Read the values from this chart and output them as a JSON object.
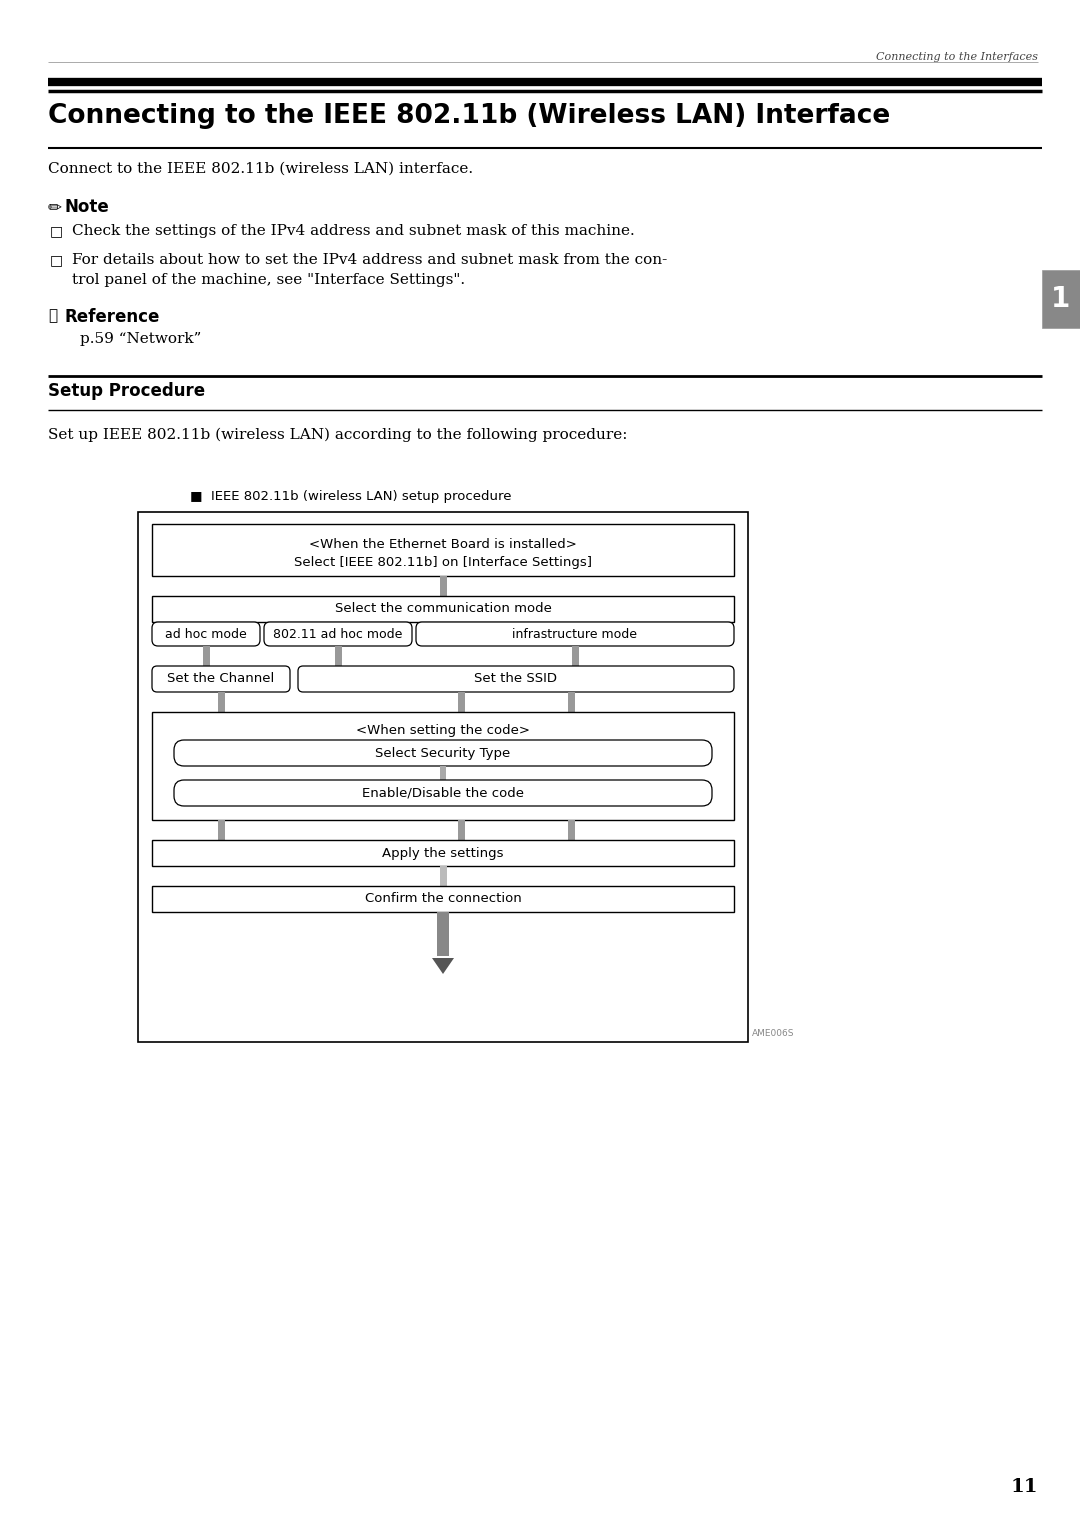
{
  "page_header": "Connecting to the Interfaces",
  "page_number": "11",
  "chapter_number": "1",
  "title": "Connecting to the IEEE 802.11b (Wireless LAN) Interface",
  "intro_text": "Connect to the IEEE 802.11b (wireless LAN) interface.",
  "note_label": "Note",
  "note_item1": "Check the settings of the IPv4 address and subnet mask of this machine.",
  "note_item2a": "For details about how to set the IPv4 address and subnet mask from the con-",
  "note_item2b": "trol panel of the machine, see \"Interface Settings\".",
  "reference_label": "Reference",
  "reference_text": "p.59 “Network”",
  "section_title": "Setup Procedure",
  "setup_intro": "Set up IEEE 802.11b (wireless LAN) according to the following procedure:",
  "diagram_title": "■  IEEE 802.11b (wireless LAN) setup procedure",
  "diagram_image_code": "AME006S",
  "bg": "#ffffff"
}
